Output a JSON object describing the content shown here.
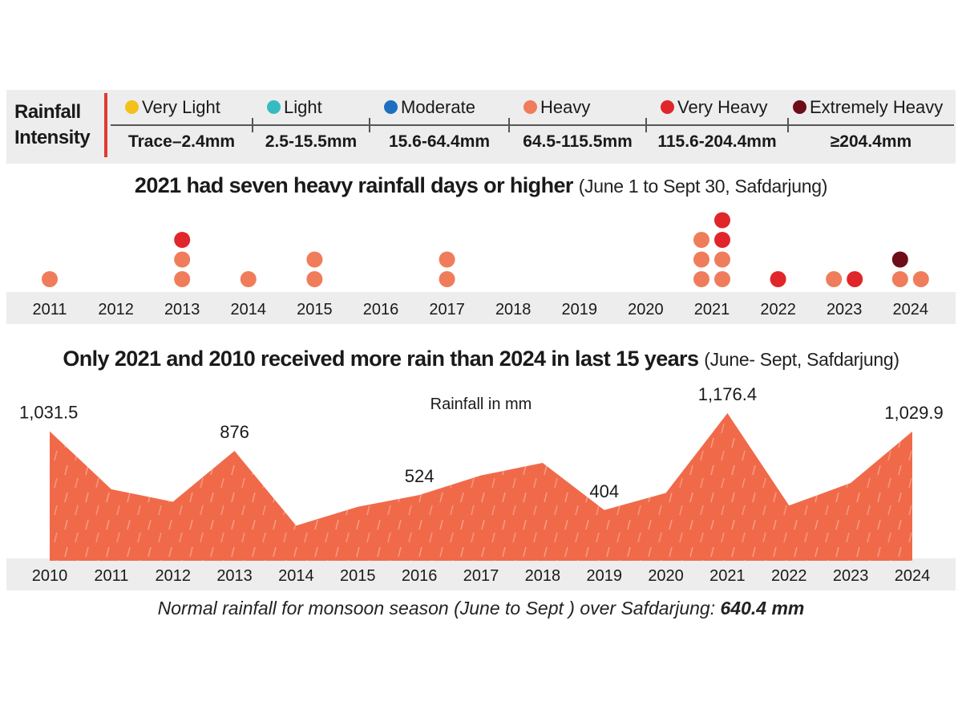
{
  "legend": {
    "title_line1": "Rainfall",
    "title_line2": "Intensity",
    "categories": [
      {
        "name": "Very Light",
        "range": "Trace–2.4mm",
        "color": "#f2c21a"
      },
      {
        "name": "Light",
        "range": "2.5-15.5mm",
        "color": "#35bcc1"
      },
      {
        "name": "Moderate",
        "range": "15.6-64.4mm",
        "color": "#1f6fc0"
      },
      {
        "name": "Heavy",
        "range": "64.5-115.5mm",
        "color": "#ef7d5b"
      },
      {
        "name": "Very Heavy",
        "range": "115.6-204.4mm",
        "color": "#e0262a"
      },
      {
        "name": "Extremely Heavy",
        "range": "≥204.4mm",
        "color": "#6e0c18"
      }
    ]
  },
  "headline1": {
    "bold": "2021 had seven heavy rainfall days or higher",
    "sub": "(June 1 to Sept 30, Safdarjung)"
  },
  "headline2": {
    "bold": "Only 2021 and 2010 received more rain than 2024 in last 15 years",
    "sub": "(June- Sept, Safdarjung)"
  },
  "footnote": {
    "text": "Normal rainfall for monsoon season (June to Sept ) over Safdarjung: ",
    "bold": "640.4 mm"
  },
  "chart_data": [
    {
      "type": "scatter",
      "title": "2021 had seven heavy rainfall days or higher",
      "categories": [
        "2011",
        "2012",
        "2013",
        "2014",
        "2015",
        "2016",
        "2017",
        "2018",
        "2019",
        "2020",
        "2021",
        "2022",
        "2023",
        "2024"
      ],
      "days": {
        "2011": [
          "Heavy"
        ],
        "2012": [],
        "2013": [
          "Heavy",
          "Heavy",
          "Very Heavy"
        ],
        "2014": [
          "Heavy"
        ],
        "2015": [
          "Heavy",
          "Heavy"
        ],
        "2016": [],
        "2017": [
          "Heavy",
          "Heavy"
        ],
        "2018": [],
        "2019": [],
        "2020": [],
        "2021": [
          [
            "Heavy",
            "Heavy",
            "Heavy"
          ],
          [
            "Heavy",
            "Heavy",
            "Very Heavy",
            "Very Heavy"
          ]
        ],
        "2022": [
          "Very Heavy"
        ],
        "2023": [
          [
            "Heavy"
          ],
          [
            "Very Heavy"
          ]
        ],
        "2024": [
          [
            "Heavy",
            "Extremely Heavy"
          ],
          [
            "Heavy"
          ]
        ]
      }
    },
    {
      "type": "area",
      "title": "Only 2021 and 2010 received more rain than 2024 in last 15 years",
      "ylabel": "Rainfall in mm",
      "x": [
        "2010",
        "2011",
        "2012",
        "2013",
        "2014",
        "2015",
        "2016",
        "2017",
        "2018",
        "2019",
        "2020",
        "2021",
        "2022",
        "2023",
        "2024"
      ],
      "values": [
        1031.5,
        570,
        470,
        876,
        280,
        430,
        524,
        680,
        780,
        404,
        540,
        1176.4,
        440,
        620,
        1029.9
      ],
      "labels": {
        "2010": "1,031.5",
        "2013": "876",
        "2016": "524",
        "2019": "404",
        "2021": "1,176.4",
        "2024": "1,029.9"
      },
      "ylim": [
        0,
        1200
      ],
      "color": "#f06a4a"
    }
  ]
}
